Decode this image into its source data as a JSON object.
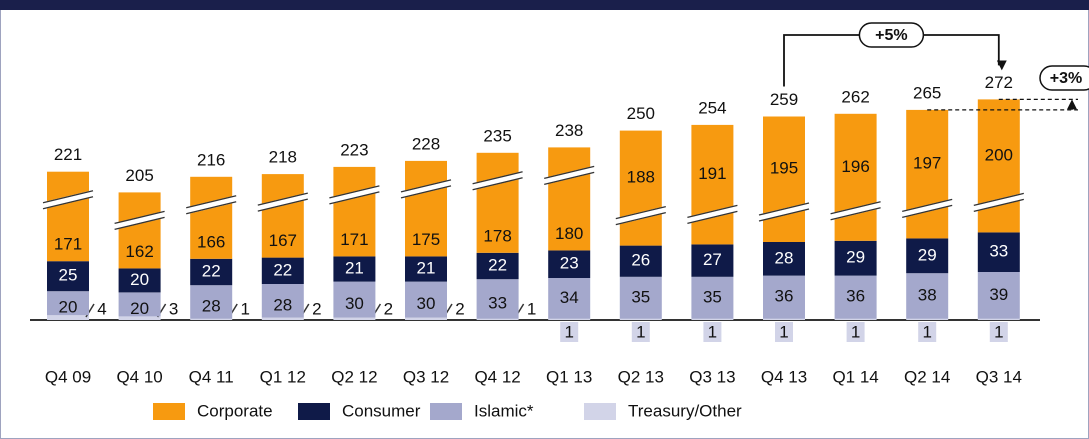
{
  "chart_data": {
    "type": "stacked-bar",
    "categories": [
      "Q4 09",
      "Q4 10",
      "Q4 11",
      "Q1 12",
      "Q2 12",
      "Q3 12",
      "Q4 12",
      "Q1 13",
      "Q2 13",
      "Q3 13",
      "Q4 13",
      "Q1 14",
      "Q2 14",
      "Q3 14"
    ],
    "totals": [
      221,
      205,
      216,
      218,
      223,
      228,
      235,
      238,
      250,
      254,
      259,
      262,
      265,
      272
    ],
    "series": [
      {
        "name": "Corporate",
        "color": "#f79a10",
        "values": [
          171,
          162,
          166,
          167,
          171,
          175,
          178,
          180,
          188,
          191,
          195,
          196,
          197,
          200
        ]
      },
      {
        "name": "Consumer",
        "color": "#0f1a48",
        "values": [
          25,
          20,
          22,
          22,
          21,
          21,
          22,
          23,
          26,
          27,
          28,
          29,
          29,
          33
        ]
      },
      {
        "name": "Islamic*",
        "color": "#a4a8cc",
        "values": [
          20,
          20,
          28,
          28,
          30,
          30,
          33,
          34,
          35,
          35,
          36,
          36,
          38,
          39
        ]
      },
      {
        "name": "Treasury/Other",
        "color": "#d2d4e8",
        "values": [
          4,
          3,
          1,
          2,
          2,
          2,
          1,
          1,
          1,
          1,
          1,
          1,
          1,
          1
        ]
      }
    ],
    "annotations": [
      "+5%",
      "+3%"
    ]
  }
}
